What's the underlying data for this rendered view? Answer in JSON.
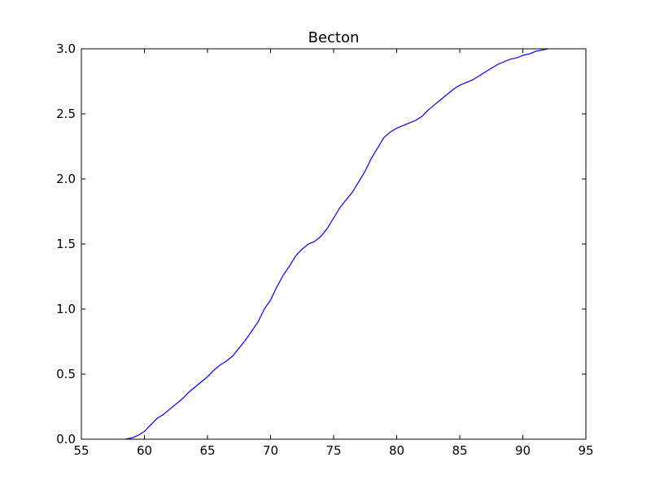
{
  "chart_data": {
    "type": "line",
    "title": "Becton",
    "xlabel": "",
    "ylabel": "",
    "xlim": [
      55,
      95
    ],
    "ylim": [
      0.0,
      3.0
    ],
    "xticks": [
      55,
      60,
      65,
      70,
      75,
      80,
      85,
      90,
      95
    ],
    "xtick_labels": [
      "55",
      "60",
      "65",
      "70",
      "75",
      "80",
      "85",
      "90",
      "95"
    ],
    "yticks": [
      0.0,
      0.5,
      1.0,
      1.5,
      2.0,
      2.5,
      3.0
    ],
    "ytick_labels": [
      "0.0",
      "0.5",
      "1.0",
      "1.5",
      "2.0",
      "2.5",
      "3.0"
    ],
    "grid": false,
    "legend": "none",
    "line_color": "#0000ff",
    "series": [
      {
        "x": [
          58.5,
          59.0,
          59.5,
          60.0,
          60.5,
          61.0,
          61.5,
          62.0,
          62.5,
          63.0,
          63.5,
          64.0,
          64.5,
          65.0,
          65.5,
          66.0,
          66.5,
          67.0,
          67.5,
          68.0,
          68.5,
          69.0,
          69.5,
          70.0,
          70.5,
          71.0,
          71.5,
          72.0,
          72.5,
          73.0,
          73.5,
          74.0,
          74.5,
          75.0,
          75.5,
          76.0,
          76.5,
          77.0,
          77.5,
          78.0,
          78.5,
          79.0,
          79.5,
          80.0,
          80.5,
          81.0,
          81.5,
          82.0,
          82.5,
          83.0,
          83.5,
          84.0,
          84.5,
          85.0,
          85.5,
          86.0,
          86.5,
          87.0,
          87.5,
          88.0,
          88.5,
          89.0,
          89.5,
          90.0,
          90.5,
          91.0,
          91.5,
          92.0
        ],
        "y": [
          0.0,
          0.01,
          0.03,
          0.06,
          0.11,
          0.16,
          0.19,
          0.23,
          0.27,
          0.31,
          0.36,
          0.4,
          0.44,
          0.48,
          0.53,
          0.57,
          0.6,
          0.64,
          0.7,
          0.76,
          0.83,
          0.9,
          1.0,
          1.07,
          1.17,
          1.26,
          1.33,
          1.41,
          1.46,
          1.5,
          1.52,
          1.56,
          1.62,
          1.7,
          1.78,
          1.84,
          1.9,
          1.98,
          2.06,
          2.16,
          2.24,
          2.32,
          2.36,
          2.39,
          2.41,
          2.43,
          2.45,
          2.48,
          2.53,
          2.57,
          2.61,
          2.65,
          2.69,
          2.72,
          2.74,
          2.76,
          2.79,
          2.82,
          2.85,
          2.88,
          2.9,
          2.92,
          2.93,
          2.95,
          2.96,
          2.98,
          2.99,
          3.0
        ]
      }
    ]
  }
}
